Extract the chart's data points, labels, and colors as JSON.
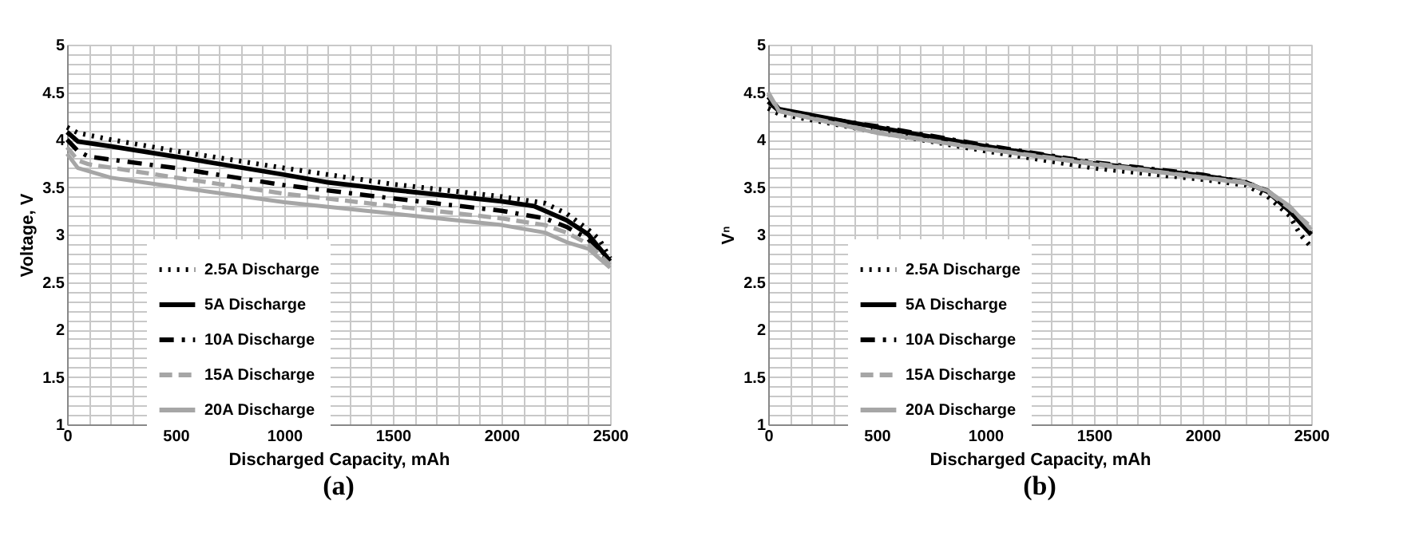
{
  "chart_data": [
    {
      "type": "line",
      "ylabel": "Voltage, V",
      "xlabel": "Discharged Capacity, mAh",
      "annotations": [
        "(a)"
      ],
      "xlim": [
        0,
        2500
      ],
      "ylim": [
        1,
        5
      ],
      "xticks": [
        0,
        {
          "value": 100,
          "label": null
        },
        {
          "value": 200,
          "label": null
        },
        {
          "value": 300,
          "label": null
        },
        {
          "value": 400,
          "label": null
        },
        500,
        {
          "value": 600,
          "label": null
        },
        {
          "value": 700,
          "label": null
        },
        {
          "value": 800,
          "label": null
        },
        {
          "value": 900,
          "label": null
        },
        1000,
        {
          "value": 1100,
          "label": null
        },
        {
          "value": 1200,
          "label": null
        },
        {
          "value": 1300,
          "label": null
        },
        {
          "value": 1400,
          "label": null
        },
        1500,
        {
          "value": 1600,
          "label": null
        },
        {
          "value": 1700,
          "label": null
        },
        {
          "value": 1800,
          "label": null
        },
        {
          "value": 1900,
          "label": null
        },
        2000,
        {
          "value": 2100,
          "label": null
        },
        {
          "value": 2200,
          "label": null
        },
        {
          "value": 2300,
          "label": null
        },
        {
          "value": 2400,
          "label": null
        },
        2500
      ],
      "yticks": [
        1,
        {
          "value": 1.1,
          "label": null
        },
        {
          "value": 1.2,
          "label": null
        },
        {
          "value": 1.3,
          "label": null
        },
        {
          "value": 1.4,
          "label": null
        },
        1.5,
        {
          "value": 1.6,
          "label": null
        },
        {
          "value": 1.7,
          "label": null
        },
        {
          "value": 1.8,
          "label": null
        },
        {
          "value": 1.9,
          "label": null
        },
        2,
        {
          "value": 2.1,
          "label": null
        },
        {
          "value": 2.2,
          "label": null
        },
        {
          "value": 2.3,
          "label": null
        },
        {
          "value": 2.4,
          "label": null
        },
        2.5,
        {
          "value": 2.6,
          "label": null
        },
        {
          "value": 2.7,
          "label": null
        },
        {
          "value": 2.8,
          "label": null
        },
        {
          "value": 2.9,
          "label": null
        },
        3,
        {
          "value": 3.1,
          "label": null
        },
        {
          "value": 3.2,
          "label": null
        },
        {
          "value": 3.3,
          "label": null
        },
        {
          "value": 3.4,
          "label": null
        },
        3.5,
        {
          "value": 3.6,
          "label": null
        },
        {
          "value": 3.7,
          "label": null
        },
        {
          "value": 3.8,
          "label": null
        },
        {
          "value": 3.9,
          "label": null
        },
        4,
        {
          "value": 4.1,
          "label": null
        },
        {
          "value": 4.2,
          "label": null
        },
        {
          "value": 4.3,
          "label": null
        },
        {
          "value": 4.4,
          "label": null
        },
        4.5,
        {
          "value": 4.6,
          "label": null
        },
        {
          "value": 4.7,
          "label": null
        },
        {
          "value": 4.8,
          "label": null
        },
        {
          "value": 4.9,
          "label": null
        },
        5
      ],
      "grid": true,
      "legend": "bottom left",
      "marker": "none",
      "series": [
        {
          "name": "2.5A Discharge",
          "color": "#000000",
          "line_style": "dotted",
          "x": [
            0,
            50,
            200,
            500,
            1000,
            1500,
            2000,
            2200,
            2300,
            2400,
            2450,
            2500
          ],
          "values": [
            4.13,
            4.07,
            4.0,
            3.88,
            3.7,
            3.53,
            3.4,
            3.33,
            3.22,
            3.05,
            2.95,
            2.75
          ]
        },
        {
          "name": "5A Discharge",
          "color": "#000000",
          "line_style": "solid",
          "x": [
            0,
            50,
            200,
            500,
            1000,
            1200,
            1500,
            2000,
            2150,
            2300,
            2400,
            2500
          ],
          "values": [
            4.08,
            3.98,
            3.93,
            3.82,
            3.63,
            3.55,
            3.47,
            3.35,
            3.3,
            3.15,
            3.0,
            2.72
          ]
        },
        {
          "name": "10A Discharge",
          "color": "#000000",
          "line_style": "dashdot",
          "x": [
            0,
            50,
            100,
            500,
            1000,
            1500,
            2000,
            2200,
            2300,
            2400,
            2500
          ],
          "values": [
            4.0,
            3.88,
            3.82,
            3.7,
            3.52,
            3.38,
            3.25,
            3.17,
            3.08,
            2.95,
            2.7
          ]
        },
        {
          "name": "15A Discharge",
          "color": "#a6a6a6",
          "line_style": "dashed",
          "x": [
            0,
            50,
            100,
            500,
            1000,
            1500,
            2000,
            2200,
            2300,
            2400,
            2500
          ],
          "values": [
            3.92,
            3.78,
            3.74,
            3.6,
            3.43,
            3.3,
            3.17,
            3.1,
            3.02,
            2.9,
            2.68
          ]
        },
        {
          "name": "20A Discharge",
          "color": "#a6a6a6",
          "line_style": "solid",
          "x": [
            0,
            50,
            200,
            500,
            1000,
            1500,
            2000,
            2200,
            2300,
            2400,
            2500
          ],
          "values": [
            3.85,
            3.7,
            3.6,
            3.5,
            3.34,
            3.22,
            3.1,
            3.02,
            2.92,
            2.85,
            2.65
          ]
        }
      ]
    },
    {
      "type": "line",
      "ylabel": "Vⁿ",
      "xlabel": "Discharged Capacity, mAh",
      "annotations": [
        "(b)"
      ],
      "xlim": [
        0,
        2500
      ],
      "ylim": [
        1,
        5
      ],
      "xticks": [
        0,
        {
          "value": 100,
          "label": null
        },
        {
          "value": 200,
          "label": null
        },
        {
          "value": 300,
          "label": null
        },
        {
          "value": 400,
          "label": null
        },
        500,
        {
          "value": 600,
          "label": null
        },
        {
          "value": 700,
          "label": null
        },
        {
          "value": 800,
          "label": null
        },
        {
          "value": 900,
          "label": null
        },
        1000,
        {
          "value": 1100,
          "label": null
        },
        {
          "value": 1200,
          "label": null
        },
        {
          "value": 1300,
          "label": null
        },
        {
          "value": 1400,
          "label": null
        },
        1500,
        {
          "value": 1600,
          "label": null
        },
        {
          "value": 1700,
          "label": null
        },
        {
          "value": 1800,
          "label": null
        },
        {
          "value": 1900,
          "label": null
        },
        2000,
        {
          "value": 2100,
          "label": null
        },
        {
          "value": 2200,
          "label": null
        },
        {
          "value": 2300,
          "label": null
        },
        {
          "value": 2400,
          "label": null
        },
        2500
      ],
      "yticks": [
        1,
        {
          "value": 1.1,
          "label": null
        },
        {
          "value": 1.2,
          "label": null
        },
        {
          "value": 1.3,
          "label": null
        },
        {
          "value": 1.4,
          "label": null
        },
        1.5,
        {
          "value": 1.6,
          "label": null
        },
        {
          "value": 1.7,
          "label": null
        },
        {
          "value": 1.8,
          "label": null
        },
        {
          "value": 1.9,
          "label": null
        },
        2,
        {
          "value": 2.1,
          "label": null
        },
        {
          "value": 2.2,
          "label": null
        },
        {
          "value": 2.3,
          "label": null
        },
        {
          "value": 2.4,
          "label": null
        },
        2.5,
        {
          "value": 2.6,
          "label": null
        },
        {
          "value": 2.7,
          "label": null
        },
        {
          "value": 2.8,
          "label": null
        },
        {
          "value": 2.9,
          "label": null
        },
        3,
        {
          "value": 3.1,
          "label": null
        },
        {
          "value": 3.2,
          "label": null
        },
        {
          "value": 3.3,
          "label": null
        },
        {
          "value": 3.4,
          "label": null
        },
        3.5,
        {
          "value": 3.6,
          "label": null
        },
        {
          "value": 3.7,
          "label": null
        },
        {
          "value": 3.8,
          "label": null
        },
        {
          "value": 3.9,
          "label": null
        },
        4,
        {
          "value": 4.1,
          "label": null
        },
        {
          "value": 4.2,
          "label": null
        },
        {
          "value": 4.3,
          "label": null
        },
        {
          "value": 4.4,
          "label": null
        },
        4.5,
        {
          "value": 4.6,
          "label": null
        },
        {
          "value": 4.7,
          "label": null
        },
        {
          "value": 4.8,
          "label": null
        },
        {
          "value": 4.9,
          "label": null
        },
        5
      ],
      "grid": true,
      "legend": "bottom left",
      "marker": "none",
      "series": [
        {
          "name": "2.5A Discharge",
          "color": "#000000",
          "line_style": "dotted",
          "x": [
            0,
            50,
            500,
            1000,
            1500,
            2000,
            2200,
            2300,
            2400,
            2450,
            2500
          ],
          "values": [
            4.33,
            4.27,
            4.08,
            3.88,
            3.7,
            3.58,
            3.52,
            3.4,
            3.2,
            3.0,
            2.87
          ]
        },
        {
          "name": "5A Discharge",
          "color": "#000000",
          "line_style": "solid",
          "x": [
            0,
            50,
            500,
            1000,
            1500,
            2000,
            2200,
            2300,
            2400,
            2500
          ],
          "values": [
            4.45,
            4.32,
            4.13,
            3.93,
            3.75,
            3.62,
            3.55,
            3.45,
            3.25,
            3.0
          ]
        },
        {
          "name": "10A Discharge",
          "color": "#000000",
          "line_style": "dashdot",
          "x": [
            0,
            50,
            500,
            1000,
            1500,
            2000,
            2200,
            2300,
            2400,
            2500
          ],
          "values": [
            4.4,
            4.3,
            4.14,
            3.94,
            3.76,
            3.63,
            3.55,
            3.46,
            3.27,
            3.02
          ]
        },
        {
          "name": "15A Discharge",
          "color": "#a6a6a6",
          "line_style": "dashed",
          "x": [
            0,
            50,
            500,
            1000,
            1500,
            2000,
            2200,
            2300,
            2400,
            2500
          ],
          "values": [
            4.48,
            4.3,
            4.08,
            3.9,
            3.75,
            3.6,
            3.55,
            3.45,
            3.28,
            3.08
          ]
        },
        {
          "name": "20A Discharge",
          "color": "#a6a6a6",
          "line_style": "solid",
          "x": [
            0,
            50,
            500,
            1000,
            1500,
            2000,
            2200,
            2300,
            2400,
            2500
          ],
          "values": [
            4.5,
            4.3,
            4.07,
            3.9,
            3.74,
            3.6,
            3.54,
            3.46,
            3.3,
            3.05
          ]
        }
      ]
    }
  ]
}
